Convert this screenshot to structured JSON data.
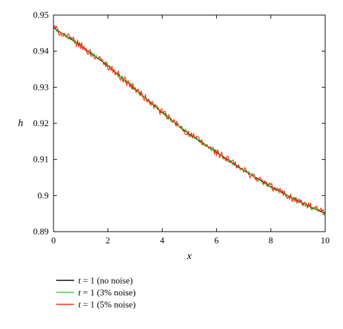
{
  "chart_data": {
    "type": "line",
    "xlabel": "x",
    "ylabel": "h",
    "xlim": [
      0,
      10
    ],
    "ylim": [
      0.89,
      0.95
    ],
    "x_ticks": [
      0,
      2,
      4,
      6,
      8,
      10
    ],
    "x_tick_labels": [
      "0",
      "2",
      "4",
      "6",
      "8",
      "10"
    ],
    "y_ticks": [
      0.89,
      0.9,
      0.91,
      0.92,
      0.93,
      0.94,
      0.95
    ],
    "y_tick_labels": [
      "0.89",
      "0.9",
      "0.91",
      "0.92",
      "0.93",
      "0.94",
      "0.95"
    ],
    "grid": false,
    "legend_position": "bottom-left, below plot",
    "x": [
      0,
      1,
      2,
      3,
      4,
      5,
      6,
      7,
      8,
      9,
      10
    ],
    "series": [
      {
        "name": "t = 1 (no noise)",
        "legend_var": "t",
        "legend_rest": " = 1 (no noise)",
        "color": "#000000",
        "noise_percent": 0,
        "values": [
          0.9465,
          0.9415,
          0.936,
          0.9295,
          0.923,
          0.917,
          0.912,
          0.907,
          0.9025,
          0.8985,
          0.895
        ]
      },
      {
        "name": "t = 1 (3% noise)",
        "legend_var": "t",
        "legend_rest": " = 1 (3% noise)",
        "color": "#33cc33",
        "noise_percent": 3,
        "values": [
          0.9465,
          0.9415,
          0.936,
          0.9295,
          0.923,
          0.917,
          0.912,
          0.907,
          0.9025,
          0.8985,
          0.895
        ]
      },
      {
        "name": "t = 1 (5% noise)",
        "legend_var": "t",
        "legend_rest": " = 1 (5% noise)",
        "color": "#ff2200",
        "noise_percent": 5,
        "values": [
          0.9465,
          0.9415,
          0.936,
          0.9295,
          0.923,
          0.917,
          0.912,
          0.907,
          0.9025,
          0.8985,
          0.895
        ]
      }
    ]
  }
}
